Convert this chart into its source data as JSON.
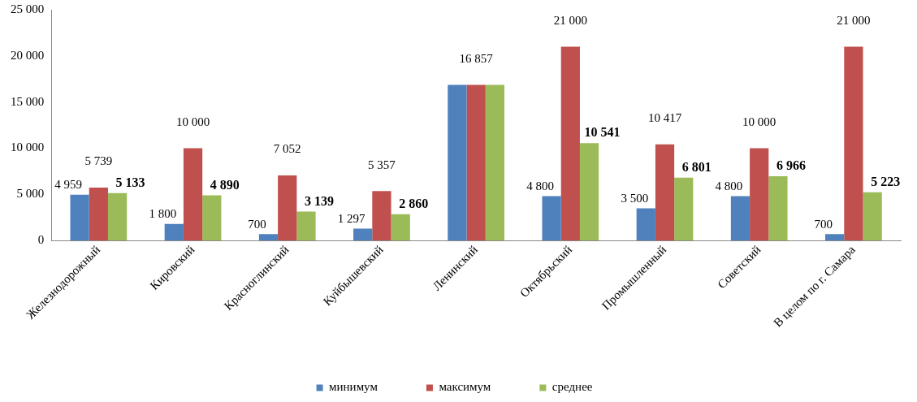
{
  "chart_data": {
    "type": "bar",
    "categories": [
      "Железнодорожный",
      "Кировский",
      "Красноглинский",
      "Куйбышевский",
      "Ленинский",
      "Октябрьский",
      "Промышленный",
      "Советский",
      "В целом по г. Самара"
    ],
    "series": [
      {
        "name": "минимум",
        "color": "#4f81bd",
        "values": [
          4959,
          1800,
          700,
          1297,
          16857,
          4800,
          3500,
          4800,
          700
        ],
        "value_labels": [
          "4 959",
          "1 800",
          "700",
          "1 297",
          null,
          "4 800",
          "3 500",
          "4 800",
          "700"
        ]
      },
      {
        "name": "максимум",
        "color": "#c0504d",
        "values": [
          5739,
          10000,
          7052,
          5357,
          16857,
          21000,
          10417,
          10000,
          21000
        ],
        "value_labels": [
          "5 739",
          "10 000",
          "7 052",
          "5 357",
          "16 857",
          "21 000",
          "10 417",
          "10 000",
          "21 000"
        ]
      },
      {
        "name": "среднее",
        "color": "#9bbb59",
        "values": [
          5133,
          4890,
          3139,
          2860,
          16857,
          10541,
          6801,
          6966,
          5223
        ],
        "value_labels": [
          "5 133",
          "4 890",
          "3 139",
          "2 860",
          null,
          "10 541",
          "6 801",
          "6 966",
          "5 223"
        ]
      }
    ],
    "ylim": [
      0,
      25000
    ],
    "yticks": [
      {
        "value": 0,
        "label": "0"
      },
      {
        "value": 5000,
        "label": "5 000"
      },
      {
        "value": 10000,
        "label": "10 000"
      },
      {
        "value": 15000,
        "label": "15 000"
      },
      {
        "value": 20000,
        "label": "20 000"
      },
      {
        "value": 25000,
        "label": "25 000"
      }
    ],
    "grid": false,
    "legend": "bottom"
  }
}
